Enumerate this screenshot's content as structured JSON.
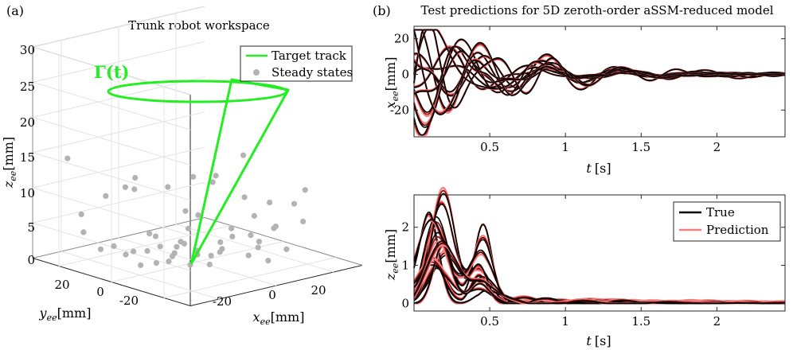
{
  "panels": {
    "a": {
      "label": "(a)",
      "chart_data": {
        "type": "scatter",
        "title": "Trunk robot workspace",
        "zlabel_sym": "z",
        "zlabel_sub": "ee",
        "zlabel_unit": "[mm]",
        "xlabel_sym": "x",
        "xlabel_sub": "ee",
        "xlabel_unit": "[mm]",
        "ylabel_sym": "y",
        "ylabel_sub": "ee",
        "ylabel_unit": "[mm]",
        "z_ticks": [
          "0",
          "5",
          "10",
          "15",
          "20",
          "25",
          "30"
        ],
        "x_ticks": [
          "-20",
          "0",
          "20"
        ],
        "y_ticks": [
          "20",
          "0",
          "-20"
        ],
        "zlim": [
          0,
          30
        ],
        "gamma_label": "Γ(t)",
        "legend": [
          {
            "name": "Target track",
            "color": "#22ee22"
          },
          {
            "name": "Steady states",
            "color": "#b3b3b3"
          }
        ],
        "steady_states": [
          [
            -27,
            20,
            15
          ],
          [
            -24,
            18,
            7
          ],
          [
            -21,
            12,
            10
          ],
          [
            -26,
            15,
            5
          ],
          [
            -16,
            10,
            11
          ],
          [
            -11,
            12,
            10
          ],
          [
            -8,
            15,
            11
          ],
          [
            -3,
            8,
            10
          ],
          [
            4,
            6,
            11
          ],
          [
            9,
            4,
            10
          ],
          [
            -20,
            10,
            3
          ],
          [
            -15,
            8,
            2
          ],
          [
            -18,
            -4,
            2
          ],
          [
            -6,
            -2,
            8
          ],
          [
            0,
            -7,
            13
          ],
          [
            5,
            -12,
            16
          ],
          [
            10,
            -7,
            9
          ],
          [
            16,
            -10,
            8
          ],
          [
            20,
            -15,
            8
          ],
          [
            24,
            -14,
            5
          ],
          [
            22,
            -17,
            10
          ],
          [
            10,
            -2,
            4
          ],
          [
            14,
            -5,
            3
          ],
          [
            20,
            -8,
            4
          ],
          [
            3,
            3,
            6
          ],
          [
            -10,
            5,
            4
          ],
          [
            -14,
            3,
            5
          ],
          [
            -8,
            0,
            2
          ],
          [
            -4,
            2,
            3
          ],
          [
            0,
            0,
            1
          ],
          [
            -2,
            -2,
            2
          ],
          [
            2,
            -3,
            1
          ],
          [
            4,
            -5,
            2
          ],
          [
            6,
            -2,
            1
          ],
          [
            8,
            0,
            2
          ],
          [
            -6,
            3,
            1
          ],
          [
            -10,
            0,
            1
          ],
          [
            -12,
            6,
            2
          ],
          [
            0,
            5,
            2
          ],
          [
            12,
            -10,
            2
          ],
          [
            16,
            -6,
            2
          ],
          [
            -18,
            2,
            1
          ],
          [
            -8,
            -6,
            1
          ],
          [
            18,
            -2,
            5
          ],
          [
            23,
            -4,
            3
          ],
          [
            6,
            10,
            3
          ],
          [
            -2,
            12,
            1
          ],
          [
            -14,
            12,
            1
          ],
          [
            10,
            -16,
            1
          ],
          [
            5,
            -14,
            2
          ],
          [
            -4,
            -9,
            1
          ],
          [
            14,
            2,
            2
          ],
          [
            -20,
            15,
            2
          ],
          [
            21,
            -11,
            1
          ],
          [
            1,
            9,
            1
          ]
        ]
      }
    },
    "b": {
      "label": "(b)",
      "chart_data": [
        {
          "type": "line",
          "title": "Test predictions for 5D zeroth-order aSSM-reduced model",
          "ylabel_sym": "x",
          "ylabel_sub": "ee",
          "ylabel_unit": "[mm]",
          "xlabel_sym": "t",
          "xlabel_unit": "[s]",
          "xlim": [
            0,
            2.45
          ],
          "ylim": [
            -35,
            27
          ],
          "x_ticks": [
            0.5,
            1,
            1.5,
            2
          ],
          "x_tick_labels": [
            "0.5",
            "1",
            "1.5",
            "2"
          ],
          "y_ticks": [
            -20,
            0,
            20
          ],
          "y_tick_labels": [
            "-20",
            "0",
            "20"
          ],
          "num_trajectories": 12,
          "series": [
            {
              "name": "True",
              "color": "#000000"
            },
            {
              "name": "Prediction",
              "color": "#f08080"
            }
          ]
        },
        {
          "type": "line",
          "ylabel_sym": "z",
          "ylabel_sub": "ee",
          "ylabel_unit": "[mm]",
          "xlabel_sym": "t",
          "xlabel_unit": "[s]",
          "xlim": [
            0,
            2.45
          ],
          "ylim": [
            -0.2,
            2.85
          ],
          "x_ticks": [
            0.5,
            1,
            1.5,
            2
          ],
          "x_tick_labels": [
            "0.5",
            "1",
            "1.5",
            "2"
          ],
          "y_ticks": [
            0,
            1,
            2
          ],
          "y_tick_labels": [
            "0",
            "1",
            "2"
          ],
          "num_trajectories": 12,
          "legend": [
            {
              "name": "True",
              "color": "#000000"
            },
            {
              "name": "Prediction",
              "color": "#f08080"
            }
          ]
        }
      ]
    }
  }
}
